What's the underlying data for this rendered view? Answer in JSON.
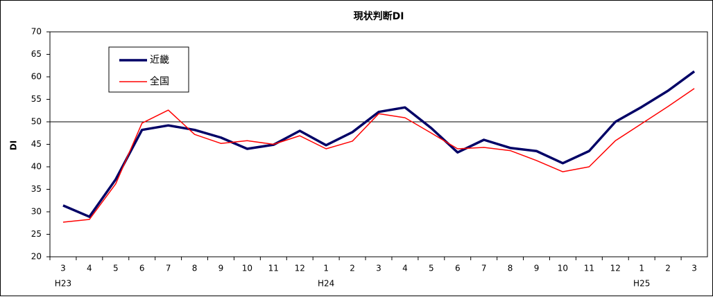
{
  "chart_data": {
    "type": "line",
    "title": "現状判断DI",
    "y_label": "DI",
    "categories": [
      "3",
      "4",
      "5",
      "6",
      "7",
      "8",
      "9",
      "10",
      "11",
      "12",
      "1",
      "2",
      "3",
      "4",
      "5",
      "6",
      "7",
      "8",
      "9",
      "10",
      "11",
      "12",
      "1",
      "2",
      "3"
    ],
    "year_labels": [
      "H23",
      null,
      null,
      null,
      null,
      null,
      null,
      null,
      null,
      null,
      "H24",
      null,
      null,
      null,
      null,
      null,
      null,
      null,
      null,
      null,
      null,
      null,
      "H25",
      null,
      null
    ],
    "series": [
      {
        "name": "近畿",
        "color": "#000066",
        "width": 3.5,
        "values": [
          31.4,
          28.9,
          37.2,
          48.2,
          49.2,
          48.2,
          46.5,
          44.0,
          44.9,
          48.0,
          44.8,
          47.7,
          52.2,
          53.2,
          48.6,
          43.2,
          46.0,
          44.2,
          43.5,
          40.8,
          43.5,
          50.0,
          53.3,
          56.9,
          61.2
        ]
      },
      {
        "name": "全国",
        "color": "#ff0000",
        "width": 1.5,
        "values": [
          27.7,
          28.3,
          36.2,
          49.7,
          52.6,
          47.2,
          45.2,
          45.8,
          45.0,
          46.9,
          44.0,
          45.7,
          51.8,
          50.9,
          47.5,
          44.0,
          44.3,
          43.6,
          41.4,
          38.9,
          40.0,
          45.8,
          49.6,
          53.4,
          57.4
        ]
      }
    ],
    "reference_line": 50,
    "ylim": [
      20,
      70
    ],
    "yticks": [
      20,
      25,
      30,
      35,
      40,
      45,
      50,
      55,
      60,
      65,
      70
    ]
  }
}
